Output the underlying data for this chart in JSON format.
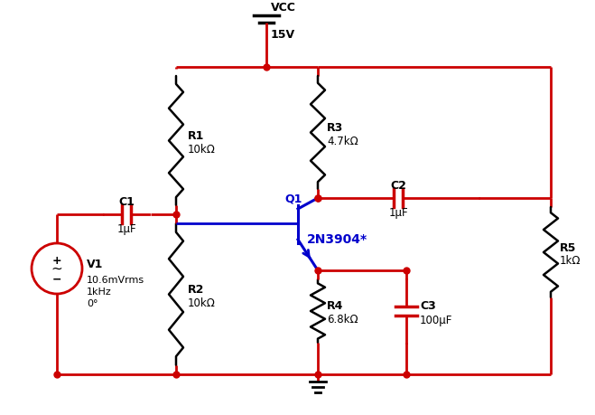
{
  "bg_color": "#ffffff",
  "wire_color": "#cc0000",
  "comp_color": "#000000",
  "bjt_color": "#0000cc",
  "vcc_label": "VCC",
  "vcc_value": "15V",
  "r1_label": "R1",
  "r1_value": "10kΩ",
  "r2_label": "R2",
  "r2_value": "10kΩ",
  "r3_label": "R3",
  "r3_value": "4.7kΩ",
  "r4_label": "R4",
  "r4_value": "6.8kΩ",
  "r5_label": "R5",
  "r5_value": "1kΩ",
  "c1_label": "C1",
  "c1_value": "1μF",
  "c2_label": "C2",
  "c2_value": "1μF",
  "c3_label": "C3",
  "c3_value": "100μF",
  "q1_label": "Q1",
  "q1_model": "2N3904*",
  "v1_label": "V1",
  "v1_value1": "10.6mVrms",
  "v1_value2": "1kHz",
  "v1_value3": "0°"
}
